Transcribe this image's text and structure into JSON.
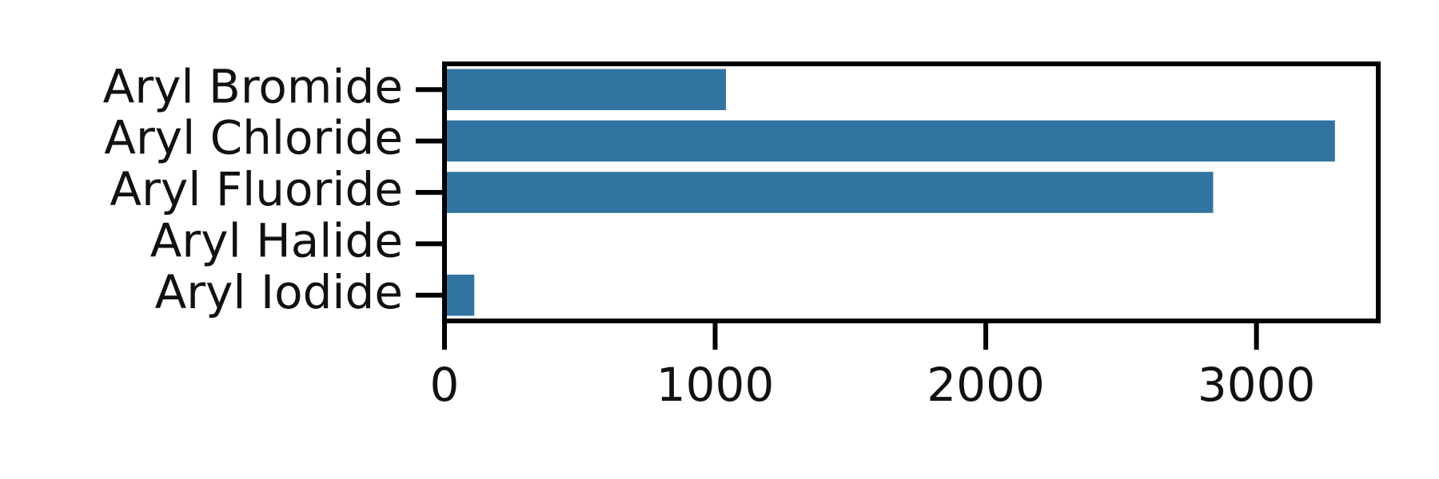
{
  "chart_data": {
    "type": "bar",
    "orientation": "horizontal",
    "categories": [
      "Aryl Bromide",
      "Aryl Chloride",
      "Aryl Fluoride",
      "Aryl Halide",
      "Aryl Iodide"
    ],
    "values": [
      1040,
      3290,
      2840,
      0,
      110
    ],
    "title": "",
    "xlabel": "",
    "ylabel": "",
    "xlim": [
      0,
      3450
    ],
    "xticks": [
      0,
      1000,
      2000,
      3000
    ],
    "xtick_labels": [
      "0",
      "1000",
      "2000",
      "3000"
    ],
    "grid": false,
    "legend": "none",
    "bar_color": "#3274a1",
    "axis_color": "#000000"
  }
}
